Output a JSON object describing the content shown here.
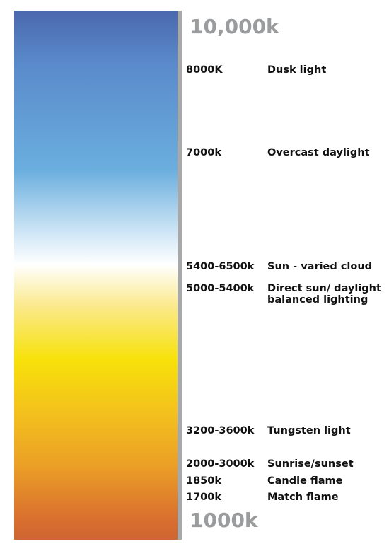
{
  "scale": {
    "top_label": "10,000k",
    "bottom_label": "1000k",
    "gradient_colors": [
      "#4a68ad",
      "#5a8acb",
      "#6aaede",
      "#cfe6f6",
      "#ffffff",
      "#fbe98a",
      "#f7e10a",
      "#f3c11d",
      "#eb9f26",
      "#d9702f",
      "#cf6532"
    ]
  },
  "temperatures": [
    {
      "kelvin": "8000K",
      "source": "Dusk light"
    },
    {
      "kelvin": "7000k",
      "source": "Overcast daylight"
    },
    {
      "kelvin": "5400-6500k",
      "source": "Sun - varied cloud"
    },
    {
      "kelvin": "5000-5400k",
      "source": "Direct sun/ daylight balanced lighting"
    },
    {
      "kelvin": "3200-3600k",
      "source": "Tungsten light"
    },
    {
      "kelvin": "2000-3000k",
      "source": "Sunrise/sunset"
    },
    {
      "kelvin": "1850k",
      "source": "Candle flame"
    },
    {
      "kelvin": "1700k",
      "source": "Match flame"
    }
  ]
}
